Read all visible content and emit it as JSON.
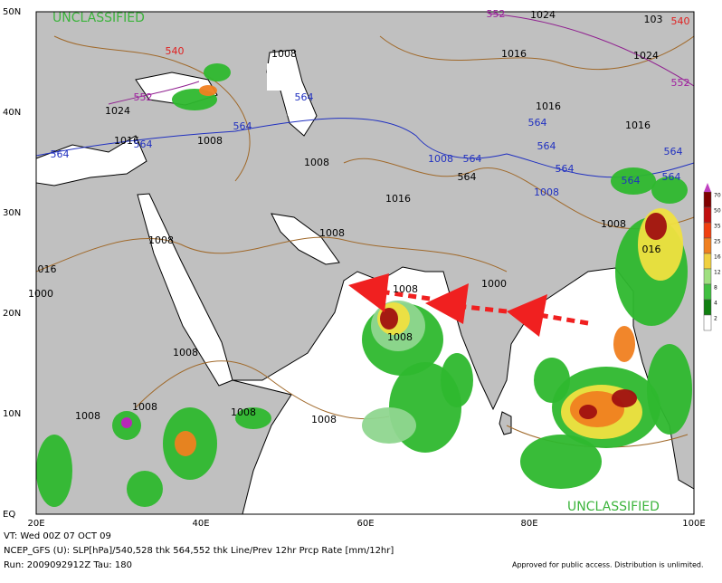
{
  "map": {
    "classification": [
      "UNCLASSIFIED",
      "UNCLASSIFIED"
    ],
    "lat_labels": [
      "50N",
      "40N",
      "30N",
      "20N",
      "10N",
      "EQ"
    ],
    "lon_labels": [
      "20E",
      "40E",
      "60E",
      "80E",
      "100E"
    ],
    "contour_labels": [
      "1024",
      "103",
      "540",
      "552",
      "1016",
      "1024",
      "552",
      "1008",
      "540",
      "552",
      "1024",
      "564",
      "1008",
      "1016",
      "564",
      "564",
      "564",
      "1016",
      "1016",
      "564",
      "564",
      "564",
      "564",
      "1008",
      "1008",
      "564",
      "564",
      "564",
      "564",
      "1008",
      "1016",
      "1008",
      "1008",
      "1008",
      "016",
      "016",
      "1000",
      "1008",
      "1000",
      "1008",
      "1008",
      "1008",
      "1008",
      "1008",
      "1008"
    ],
    "colorbar": {
      "ticks": [
        70,
        50,
        35,
        25,
        16,
        12,
        8,
        4,
        2
      ]
    },
    "footer": {
      "valid_time": "VT: Wed 00Z 07 OCT 09",
      "product": "NCEP_GFS (U): SLP[hPa]/540,528 thk 564,552 thk Line/Prev 12hr Prcp Rate [mm/12hr]",
      "run": "Run: 2009092912Z Tau: 180",
      "release": "Approved for public access. Distribution is unlimited."
    }
  }
}
